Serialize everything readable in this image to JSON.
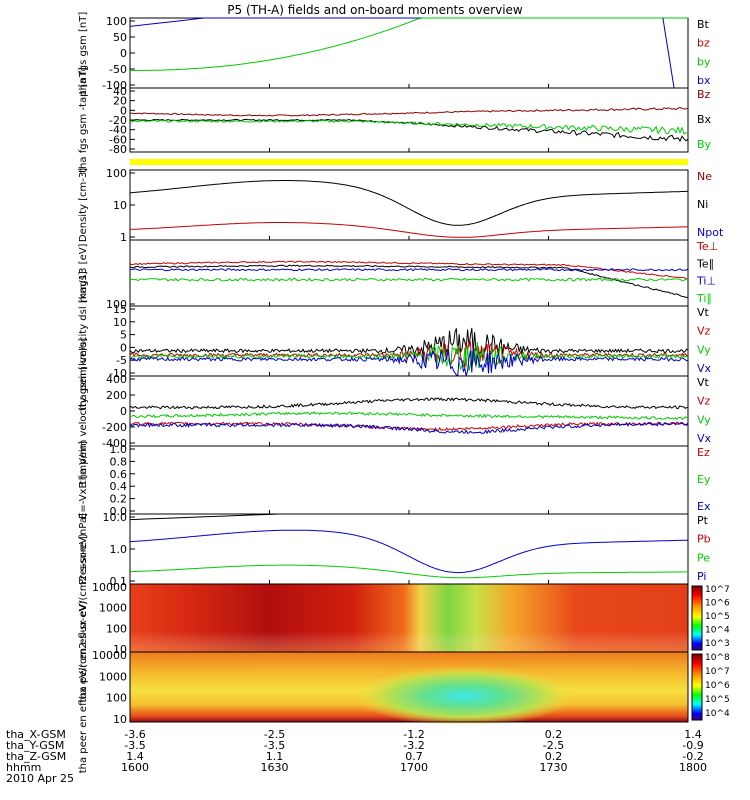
{
  "title": "P5 (TH-A) fields and on-board moments overview",
  "colors": {
    "black": "#000000",
    "red": "#c40000",
    "darkred": "#8b0000",
    "green": "#00cc00",
    "blue": "#0000cc",
    "yellow": "#ffff00"
  },
  "chart_data": {
    "type": "line",
    "x_ticks": [
      "1600",
      "1630",
      "1700",
      "1730",
      "1800"
    ],
    "ephemeris": [
      {
        "label": "tha_X-GSM",
        "values": [
          "-3.6",
          "-2.5",
          "-1.2",
          "0.2",
          "1.4"
        ]
      },
      {
        "label": "tha_Y-GSM",
        "values": [
          "-3.5",
          "-3.5",
          "-3.2",
          "-2.5",
          "-0.9"
        ]
      },
      {
        "label": "tha_Z-GSM",
        "values": [
          "1.4",
          "1.1",
          "0.7",
          "0.2",
          "-0.2"
        ]
      },
      {
        "label": "hhmm",
        "values": [
          "1600",
          "1630",
          "1700",
          "1730",
          "1800"
        ]
      }
    ],
    "date_label": "2010 Apr 25",
    "panels": [
      {
        "ylabel": "tha fgs gsm [nT]",
        "yticks": [
          "100",
          "50",
          "0",
          "-50",
          "-100"
        ],
        "legend": [
          {
            "label": "Bt",
            "color": "black"
          },
          {
            "label": "bz",
            "color": "red"
          },
          {
            "label": "by",
            "color": "green"
          },
          {
            "label": "bx",
            "color": "blue"
          }
        ]
      },
      {
        "ylabel": "tha fgs gsm -tap [nT]",
        "yticks": [
          "40",
          "20",
          "0",
          "-20",
          "-40",
          "-60",
          "-80"
        ],
        "legend": [
          {
            "label": "Bz",
            "color": "darkred"
          },
          {
            "label": "Bx",
            "color": "black"
          },
          {
            "label": "By",
            "color": "green"
          }
        ]
      },
      {
        "ylabel": "Density [cm-3]",
        "yticks": [
          "100",
          "10",
          "1"
        ],
        "legend": [
          {
            "label": "Ne",
            "color": "darkred"
          },
          {
            "label": "Ni",
            "color": "black"
          },
          {
            "label": "Npot",
            "color": "blue"
          }
        ]
      },
      {
        "ylabel": "mag13 [eV]",
        "yticks": [
          "100"
        ],
        "legend": [
          {
            "label": "Te⊥",
            "color": "red"
          },
          {
            "label": "Te∥",
            "color": "black"
          },
          {
            "label": "Ti⊥",
            "color": "blue"
          },
          {
            "label": "Ti∥",
            "color": "green"
          }
        ]
      },
      {
        "ylabel": "tha peim velocity dsl [km/s]",
        "yticks": [
          "15",
          "10",
          "5",
          "0",
          "-5",
          "-10"
        ],
        "legend": [
          {
            "label": "Vt",
            "color": "black"
          },
          {
            "label": "Vz",
            "color": "red"
          },
          {
            "label": "Vy",
            "color": "green"
          },
          {
            "label": "Vx",
            "color": "blue"
          }
        ]
      },
      {
        "ylabel": "tha peim velocity gsm [km/s]",
        "yticks": [
          "400",
          "200",
          "0",
          "-200",
          "-400"
        ],
        "legend": [
          {
            "label": "Vt",
            "color": "black"
          },
          {
            "label": "Vz",
            "color": "red"
          },
          {
            "label": "Vy",
            "color": "green"
          },
          {
            "label": "Vx",
            "color": "blue"
          }
        ]
      },
      {
        "ylabel": "E=-VxB [mV/m]",
        "yticks": [
          "1.0",
          "0.8",
          "0.6",
          "0.4",
          "0.2",
          "0.0"
        ],
        "legend": [
          {
            "label": "Ez",
            "color": "red"
          },
          {
            "label": "Ey",
            "color": "green"
          },
          {
            "label": "Ex",
            "color": "blue"
          }
        ]
      },
      {
        "ylabel": "Pressure [nPa]",
        "yticks": [
          "10.0",
          "1.0",
          "0.1"
        ],
        "legend": [
          {
            "label": "Pt",
            "color": "black"
          },
          {
            "label": "Pb",
            "color": "red"
          },
          {
            "label": "Pe",
            "color": "green"
          },
          {
            "label": "Pi",
            "color": "blue"
          }
        ]
      },
      {
        "ylabel": "tha peir en eflux eV/(cm2-s-sr-eV)",
        "yticks": [
          "10000",
          "1000",
          "100",
          "10"
        ],
        "colorbar": [
          "10^7",
          "10^6",
          "10^5",
          "10^4",
          "10^3"
        ]
      },
      {
        "ylabel": "tha peer en eflux eV/(cm2-s-sr-eV)",
        "yticks": [
          "10000",
          "1000",
          "100",
          "10"
        ],
        "colorbar": [
          "10^8",
          "10^7",
          "10^6",
          "10^5",
          "10^4"
        ]
      }
    ]
  }
}
